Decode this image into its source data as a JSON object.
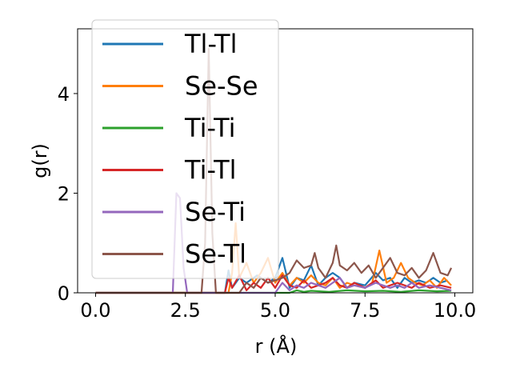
{
  "chart_data": {
    "type": "line",
    "xlabel": "r (Å)",
    "ylabel": "g(r)",
    "xlim": [
      -0.5,
      10.5
    ],
    "ylim": [
      0,
      5.3
    ],
    "xticks": [
      0.0,
      2.5,
      5.0,
      7.5,
      10.0
    ],
    "xtick_labels": [
      "0.0",
      "2.5",
      "5.0",
      "7.5",
      "10.0"
    ],
    "yticks": [
      0,
      2,
      4
    ],
    "ytick_labels": [
      "0",
      "2",
      "4"
    ],
    "grid": false,
    "legend_position": "top-left",
    "series": [
      {
        "name": "Tl-Tl",
        "color": "#1f77b4",
        "points": [
          [
            0,
            0
          ],
          [
            3.6,
            0
          ],
          [
            3.7,
            0.45
          ],
          [
            3.8,
            0.1
          ],
          [
            4.0,
            0.3
          ],
          [
            4.2,
            0.2
          ],
          [
            4.5,
            0.35
          ],
          [
            4.8,
            0.2
          ],
          [
            5.0,
            0.3
          ],
          [
            5.2,
            0.7
          ],
          [
            5.4,
            0.1
          ],
          [
            5.6,
            0.3
          ],
          [
            5.8,
            0.25
          ],
          [
            6.0,
            0.55
          ],
          [
            6.2,
            0.15
          ],
          [
            6.4,
            0.3
          ],
          [
            6.6,
            0.4
          ],
          [
            6.8,
            0.3
          ],
          [
            7.0,
            0.1
          ],
          [
            7.2,
            0.2
          ],
          [
            7.5,
            0.15
          ],
          [
            7.8,
            0.4
          ],
          [
            8.0,
            0.25
          ],
          [
            8.2,
            0.3
          ],
          [
            8.4,
            0.1
          ],
          [
            8.6,
            0.3
          ],
          [
            8.8,
            0.2
          ],
          [
            9.0,
            0.25
          ],
          [
            9.2,
            0.2
          ],
          [
            9.4,
            0.3
          ],
          [
            9.6,
            0.2
          ],
          [
            9.8,
            0.25
          ]
        ]
      },
      {
        "name": "Se-Se",
        "color": "#ff7f0e",
        "points": [
          [
            0,
            0
          ],
          [
            3.7,
            0
          ],
          [
            3.8,
            0.4
          ],
          [
            3.9,
            1.4
          ],
          [
            4.0,
            0.3
          ],
          [
            4.2,
            0.6
          ],
          [
            4.4,
            0.2
          ],
          [
            4.6,
            0.4
          ],
          [
            4.8,
            0.7
          ],
          [
            5.0,
            0.2
          ],
          [
            5.2,
            0.4
          ],
          [
            5.4,
            0.15
          ],
          [
            5.6,
            0.3
          ],
          [
            5.8,
            0.2
          ],
          [
            6.0,
            0.35
          ],
          [
            6.2,
            0.2
          ],
          [
            6.4,
            0.15
          ],
          [
            6.6,
            0.3
          ],
          [
            6.8,
            0.1
          ],
          [
            7.0,
            0.2
          ],
          [
            7.2,
            0.15
          ],
          [
            7.5,
            0.1
          ],
          [
            7.7,
            0.2
          ],
          [
            7.9,
            0.85
          ],
          [
            8.1,
            0.2
          ],
          [
            8.3,
            0.3
          ],
          [
            8.5,
            0.6
          ],
          [
            8.7,
            0.3
          ],
          [
            8.9,
            0.2
          ],
          [
            9.1,
            0.15
          ],
          [
            9.3,
            0.25
          ],
          [
            9.5,
            0.1
          ],
          [
            9.7,
            0.3
          ],
          [
            9.9,
            0.15
          ]
        ]
      },
      {
        "name": "Ti-Ti",
        "color": "#2ca02c",
        "points": [
          [
            0,
            0
          ],
          [
            5.4,
            0
          ],
          [
            5.6,
            0.05
          ],
          [
            5.8,
            0.02
          ],
          [
            6.0,
            0.04
          ],
          [
            6.5,
            0.02
          ],
          [
            7.0,
            0.05
          ],
          [
            7.5,
            0.03
          ],
          [
            8.0,
            0.04
          ],
          [
            8.5,
            0.02
          ],
          [
            9.0,
            0.05
          ],
          [
            9.5,
            0.03
          ],
          [
            9.9,
            0.04
          ]
        ]
      },
      {
        "name": "Ti-Tl",
        "color": "#d62728",
        "points": [
          [
            0,
            0
          ],
          [
            3.6,
            0
          ],
          [
            3.7,
            0.3
          ],
          [
            3.8,
            0.1
          ],
          [
            4.0,
            0.35
          ],
          [
            4.2,
            0.05
          ],
          [
            4.4,
            0.2
          ],
          [
            4.6,
            0.1
          ],
          [
            4.8,
            0.3
          ],
          [
            5.0,
            0.1
          ],
          [
            5.2,
            0.35
          ],
          [
            5.4,
            0.15
          ],
          [
            5.6,
            0.1
          ],
          [
            5.8,
            0.25
          ],
          [
            6.0,
            0.1
          ],
          [
            6.2,
            0.15
          ],
          [
            6.4,
            0.2
          ],
          [
            6.6,
            0.3
          ],
          [
            6.8,
            0.15
          ],
          [
            7.0,
            0.1
          ],
          [
            7.2,
            0.2
          ],
          [
            7.5,
            0.1
          ],
          [
            7.8,
            0.25
          ],
          [
            8.0,
            0.1
          ],
          [
            8.2,
            0.15
          ],
          [
            8.4,
            0.2
          ],
          [
            8.6,
            0.15
          ],
          [
            8.8,
            0.1
          ],
          [
            9.0,
            0.2
          ],
          [
            9.3,
            0.1
          ],
          [
            9.6,
            0.15
          ],
          [
            9.9,
            0.1
          ]
        ]
      },
      {
        "name": "Se-Ti",
        "color": "#9467bd",
        "points": [
          [
            0,
            0
          ],
          [
            2.15,
            0
          ],
          [
            2.25,
            2.0
          ],
          [
            2.35,
            1.9
          ],
          [
            2.45,
            0.5
          ],
          [
            2.55,
            0
          ],
          [
            5.0,
            0
          ],
          [
            5.2,
            0.2
          ],
          [
            5.4,
            0.05
          ],
          [
            5.6,
            0.15
          ],
          [
            5.8,
            0.1
          ],
          [
            6.0,
            0.2
          ],
          [
            6.2,
            0.15
          ],
          [
            6.4,
            0.1
          ],
          [
            6.6,
            0.2
          ],
          [
            6.8,
            0.3
          ],
          [
            7.0,
            0.1
          ],
          [
            7.2,
            0.15
          ],
          [
            7.5,
            0.1
          ],
          [
            7.8,
            0.2
          ],
          [
            8.0,
            0.15
          ],
          [
            8.2,
            0.1
          ],
          [
            8.4,
            0.15
          ],
          [
            8.6,
            0.1
          ],
          [
            8.8,
            0.2
          ],
          [
            9.0,
            0.1
          ],
          [
            9.3,
            0.15
          ],
          [
            9.6,
            0.1
          ],
          [
            9.9,
            0.05
          ]
        ]
      },
      {
        "name": "Se-Tl",
        "color": "#8c564b",
        "points": [
          [
            0,
            0
          ],
          [
            2.95,
            0
          ],
          [
            3.05,
            1.0
          ],
          [
            3.15,
            4.9
          ],
          [
            3.25,
            1.2
          ],
          [
            3.35,
            0
          ],
          [
            4.0,
            0
          ],
          [
            4.2,
            0.2
          ],
          [
            4.4,
            0.1
          ],
          [
            4.6,
            0.3
          ],
          [
            4.8,
            0.2
          ],
          [
            5.0,
            0.25
          ],
          [
            5.2,
            0.3
          ],
          [
            5.4,
            0.4
          ],
          [
            5.6,
            0.65
          ],
          [
            5.8,
            0.5
          ],
          [
            6.0,
            0.55
          ],
          [
            6.1,
            0.8
          ],
          [
            6.2,
            0.5
          ],
          [
            6.4,
            0.3
          ],
          [
            6.6,
            0.6
          ],
          [
            6.7,
            0.95
          ],
          [
            6.8,
            0.55
          ],
          [
            7.0,
            0.45
          ],
          [
            7.2,
            0.6
          ],
          [
            7.4,
            0.4
          ],
          [
            7.6,
            0.55
          ],
          [
            7.8,
            0.3
          ],
          [
            8.0,
            0.5
          ],
          [
            8.2,
            0.7
          ],
          [
            8.4,
            0.4
          ],
          [
            8.6,
            0.35
          ],
          [
            8.8,
            0.5
          ],
          [
            9.0,
            0.3
          ],
          [
            9.2,
            0.45
          ],
          [
            9.4,
            0.8
          ],
          [
            9.6,
            0.4
          ],
          [
            9.8,
            0.35
          ],
          [
            9.9,
            0.5
          ]
        ]
      }
    ]
  }
}
